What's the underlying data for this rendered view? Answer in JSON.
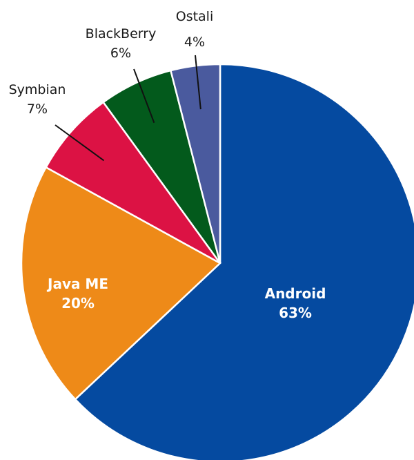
{
  "chart_data": {
    "type": "pie",
    "slices": [
      {
        "label": "Android",
        "pct": "63%",
        "value": 63,
        "color": "#054aa0"
      },
      {
        "label": "Java ME",
        "pct": "20%",
        "value": 20,
        "color": "#ee8a18"
      },
      {
        "label": "Symbian",
        "pct": "7%",
        "value": 7,
        "color": "#dc1244"
      },
      {
        "label": "BlackBerry",
        "pct": "6%",
        "value": 6,
        "color": "#035a1c"
      },
      {
        "label": "Ostali",
        "pct": "4%",
        "value": 4,
        "color": "#4a5a9e"
      }
    ]
  }
}
